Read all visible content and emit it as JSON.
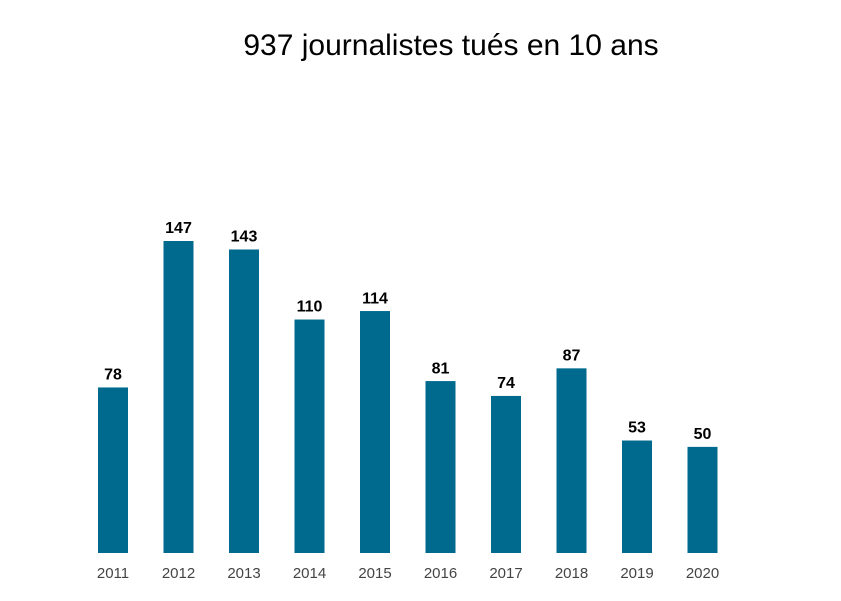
{
  "chart_data": {
    "type": "bar",
    "title": "937 journalistes tués en 10 ans",
    "categories": [
      "2011",
      "2012",
      "2013",
      "2014",
      "2015",
      "2016",
      "2017",
      "2018",
      "2019",
      "2020"
    ],
    "values": [
      78,
      147,
      143,
      110,
      114,
      81,
      74,
      87,
      53,
      50
    ],
    "color": "#006a8e"
  }
}
